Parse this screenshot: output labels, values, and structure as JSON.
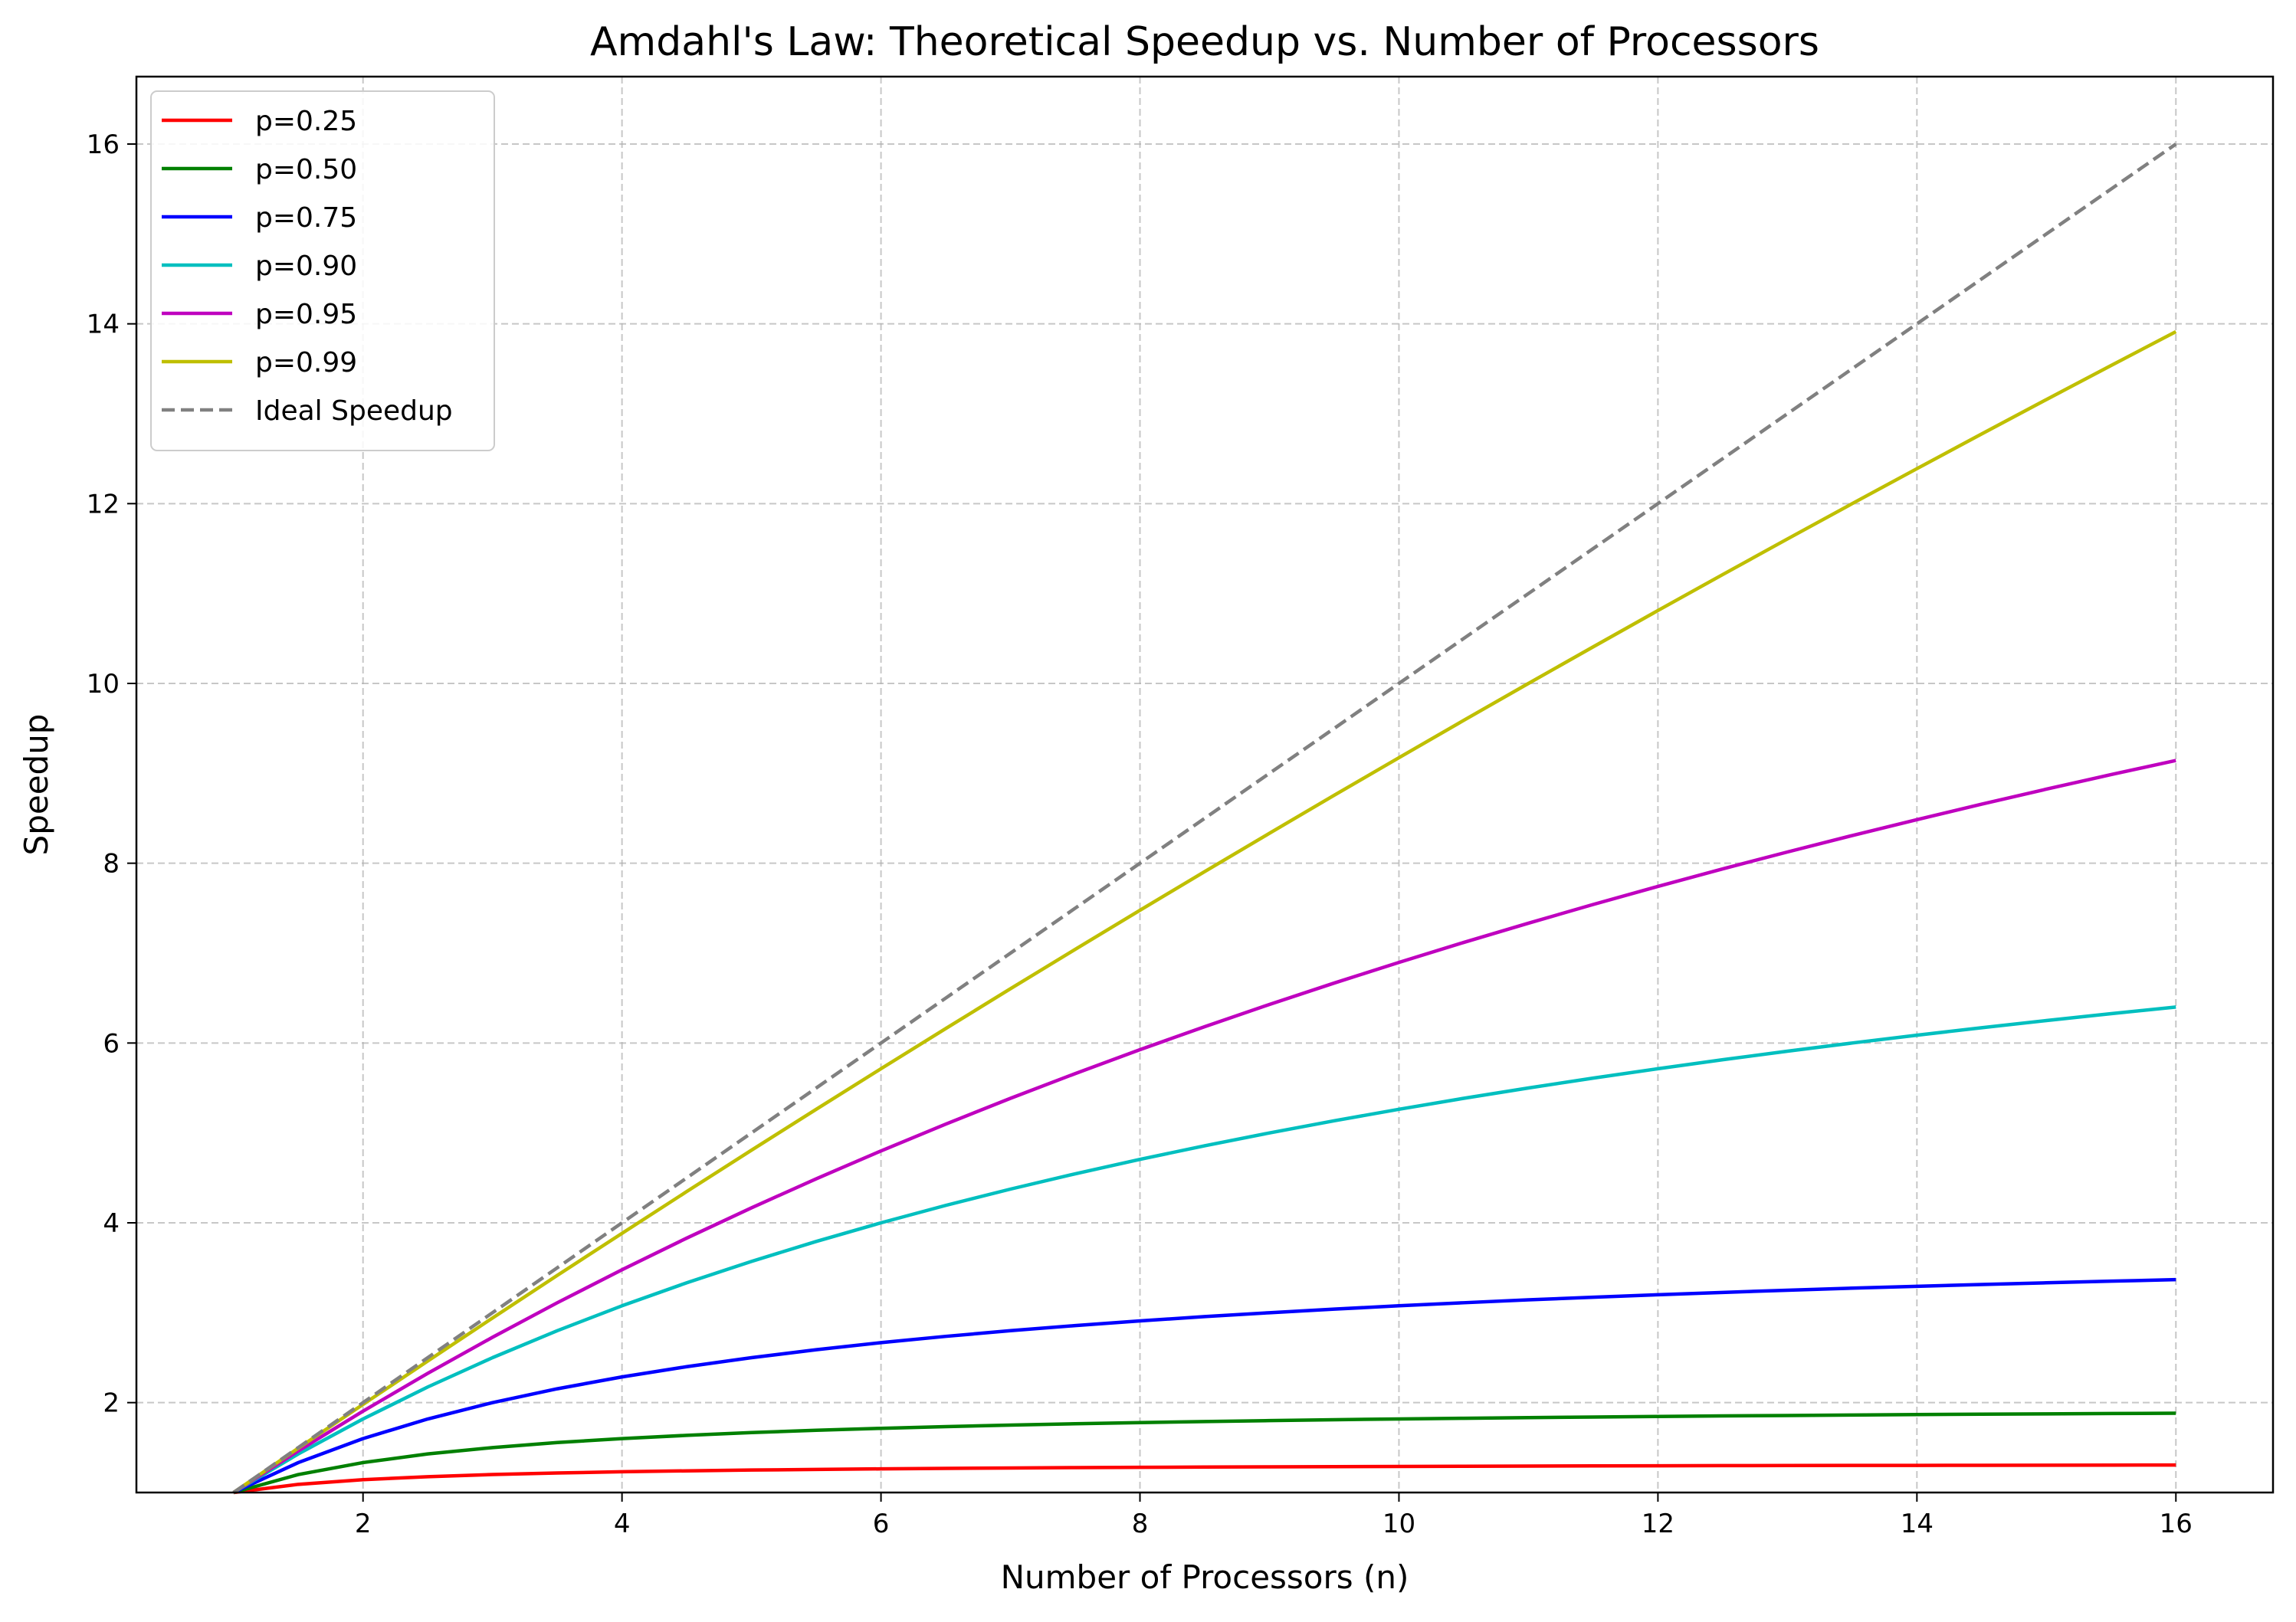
{
  "chart_data": {
    "type": "line",
    "title": "Amdahl's Law: Theoretical Speedup vs. Number of Processors",
    "xlabel": "Number of Processors (n)",
    "ylabel": "Speedup",
    "xlim": [
      0.25,
      16.75
    ],
    "ylim": [
      1.0,
      16.75
    ],
    "x_ticks": [
      2,
      4,
      6,
      8,
      10,
      12,
      14,
      16
    ],
    "y_ticks": [
      2,
      4,
      6,
      8,
      10,
      12,
      14,
      16
    ],
    "grid": true,
    "legend_position": "upper left",
    "x": [
      1,
      1.5,
      2,
      2.5,
      3,
      3.5,
      4,
      4.5,
      5,
      5.5,
      6,
      6.5,
      7,
      7.5,
      8,
      8.5,
      9,
      9.5,
      10,
      10.5,
      11,
      11.5,
      12,
      12.5,
      13,
      13.5,
      14,
      14.5,
      15,
      15.5,
      16
    ],
    "series": [
      {
        "name": "p=0.25",
        "color": "#ff0000",
        "dashed": false,
        "values": [
          1.0,
          1.091,
          1.143,
          1.176,
          1.2,
          1.217,
          1.231,
          1.241,
          1.25,
          1.257,
          1.263,
          1.268,
          1.273,
          1.277,
          1.28,
          1.283,
          1.286,
          1.288,
          1.29,
          1.292,
          1.294,
          1.296,
          1.297,
          1.299,
          1.3,
          1.301,
          1.302,
          1.303,
          1.304,
          1.305,
          1.306
        ]
      },
      {
        "name": "p=0.50",
        "color": "#008000",
        "dashed": false,
        "values": [
          1.0,
          1.2,
          1.333,
          1.429,
          1.5,
          1.556,
          1.6,
          1.636,
          1.667,
          1.692,
          1.714,
          1.733,
          1.75,
          1.765,
          1.778,
          1.789,
          1.8,
          1.81,
          1.818,
          1.826,
          1.833,
          1.84,
          1.846,
          1.852,
          1.857,
          1.862,
          1.867,
          1.871,
          1.875,
          1.879,
          1.882
        ]
      },
      {
        "name": "p=0.75",
        "color": "#0000ff",
        "dashed": false,
        "values": [
          1.0,
          1.333,
          1.6,
          1.818,
          2.0,
          2.154,
          2.286,
          2.4,
          2.5,
          2.588,
          2.667,
          2.737,
          2.8,
          2.857,
          2.909,
          2.957,
          3.0,
          3.04,
          3.077,
          3.111,
          3.143,
          3.172,
          3.2,
          3.226,
          3.25,
          3.273,
          3.294,
          3.314,
          3.333,
          3.351,
          3.368
        ]
      },
      {
        "name": "p=0.90",
        "color": "#00bfbf",
        "dashed": false,
        "values": [
          1.0,
          1.429,
          1.818,
          2.174,
          2.5,
          2.8,
          3.077,
          3.333,
          3.571,
          3.793,
          4.0,
          4.194,
          4.375,
          4.545,
          4.706,
          4.857,
          5.0,
          5.135,
          5.263,
          5.385,
          5.5,
          5.61,
          5.714,
          5.814,
          5.909,
          6.0,
          6.087,
          6.17,
          6.25,
          6.327,
          6.4
        ]
      },
      {
        "name": "p=0.95",
        "color": "#bf00bf",
        "dashed": false,
        "values": [
          1.0,
          1.463,
          1.905,
          2.326,
          2.727,
          3.111,
          3.478,
          3.83,
          4.167,
          4.49,
          4.8,
          5.098,
          5.385,
          5.66,
          5.926,
          6.182,
          6.429,
          6.667,
          6.897,
          7.119,
          7.333,
          7.541,
          7.742,
          7.937,
          8.125,
          8.308,
          8.485,
          8.657,
          8.824,
          8.986,
          9.143
        ]
      },
      {
        "name": "p=0.99",
        "color": "#bfbf00",
        "dashed": false,
        "values": [
          1.0,
          1.493,
          1.98,
          2.463,
          2.941,
          3.415,
          3.883,
          4.348,
          4.808,
          5.263,
          5.714,
          6.161,
          6.604,
          7.042,
          7.477,
          7.907,
          8.333,
          8.756,
          9.174,
          9.589,
          10.0,
          10.407,
          10.811,
          11.211,
          11.607,
          12.0,
          12.389,
          12.775,
          13.158,
          13.537,
          13.913
        ]
      },
      {
        "name": "Ideal Speedup",
        "color": "#808080",
        "dashed": true,
        "values": [
          1,
          1.5,
          2,
          2.5,
          3,
          3.5,
          4,
          4.5,
          5,
          5.5,
          6,
          6.5,
          7,
          7.5,
          8,
          8.5,
          9,
          9.5,
          10,
          10.5,
          11,
          11.5,
          12,
          12.5,
          13,
          13.5,
          14,
          14.5,
          15,
          15.5,
          16
        ]
      }
    ]
  }
}
